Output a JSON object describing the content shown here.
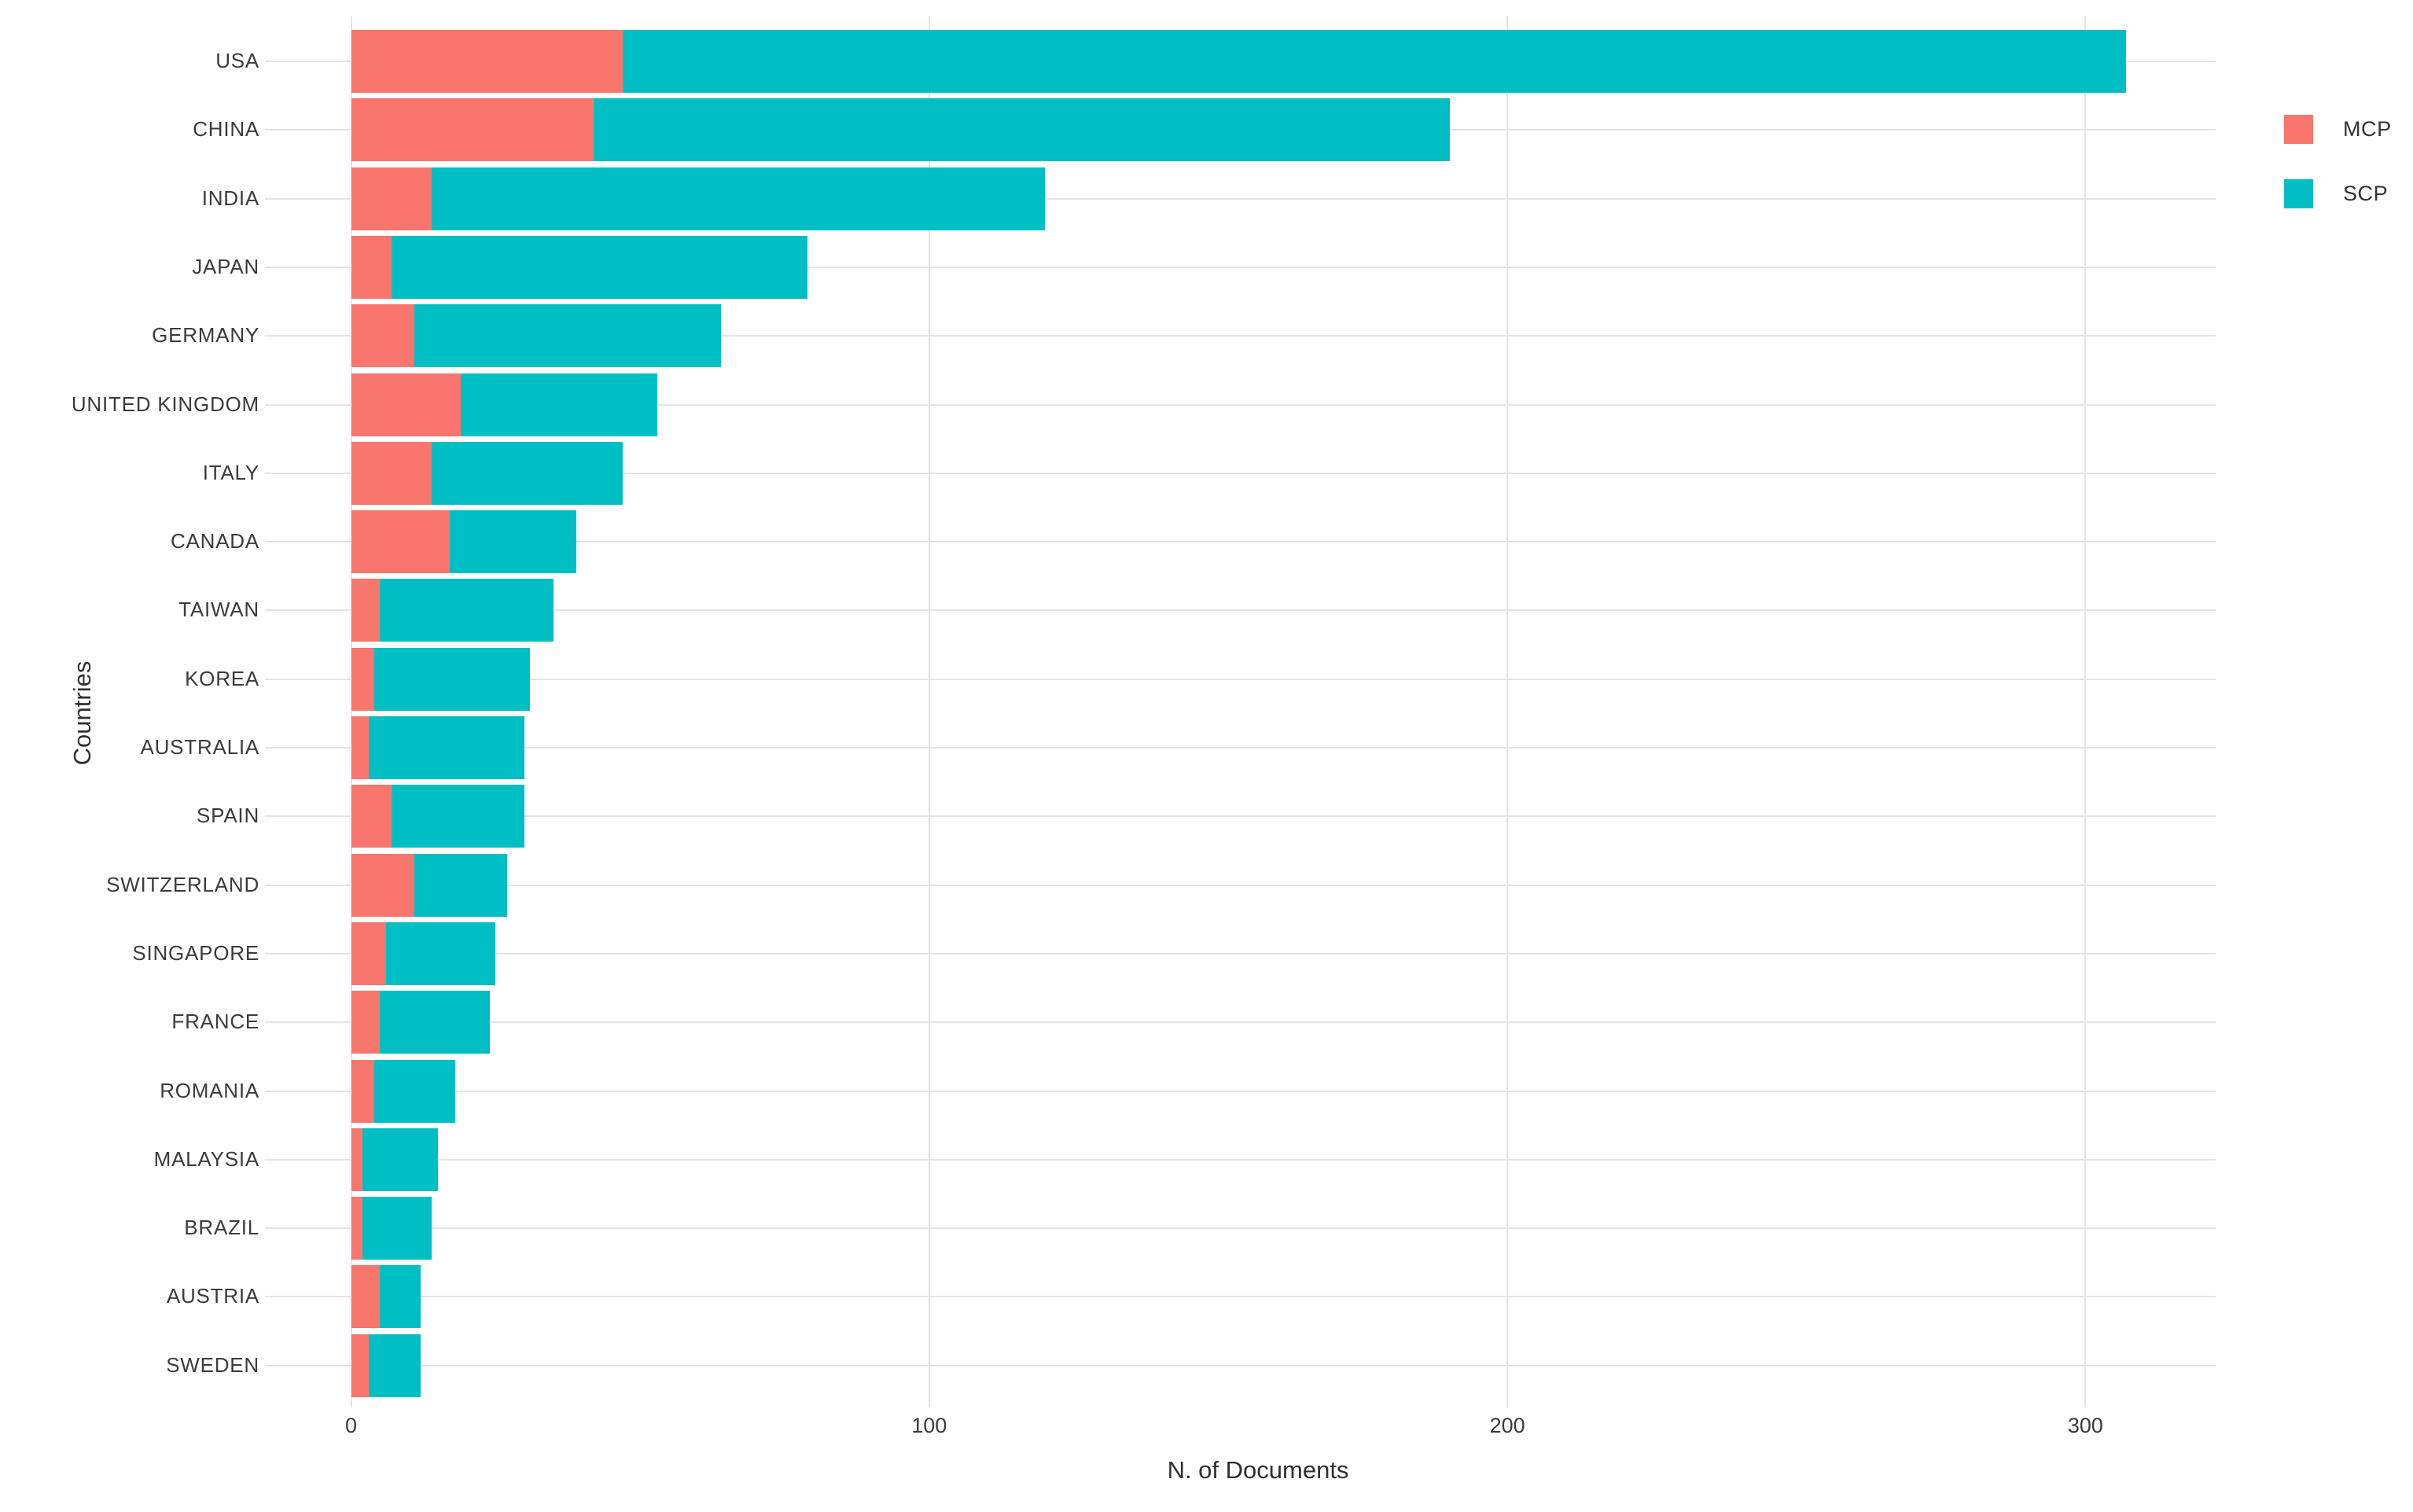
{
  "chart_data": {
    "type": "bar",
    "orientation": "horizontal",
    "stacked": true,
    "title": "",
    "xlabel": "N. of Documents",
    "ylabel": "Countries",
    "categories": [
      "USA",
      "CHINA",
      "INDIA",
      "JAPAN",
      "GERMANY",
      "UNITED KINGDOM",
      "ITALY",
      "CANADA",
      "TAIWAN",
      "KOREA",
      "AUSTRALIA",
      "SPAIN",
      "SWITZERLAND",
      "SINGAPORE",
      "FRANCE",
      "ROMANIA",
      "MALAYSIA",
      "BRAZIL",
      "AUSTRIA",
      "SWEDEN"
    ],
    "series": [
      {
        "name": "MCP",
        "color": "#F8766D",
        "values": [
          47,
          42,
          14,
          7,
          11,
          19,
          14,
          17,
          5,
          4,
          3,
          7,
          11,
          6,
          5,
          4,
          2,
          2,
          5,
          3
        ]
      },
      {
        "name": "SCP",
        "color": "#00BFC4",
        "values": [
          260,
          148,
          106,
          72,
          53,
          34,
          33,
          22,
          30,
          27,
          27,
          23,
          16,
          19,
          19,
          14,
          13,
          12,
          7,
          9
        ]
      }
    ],
    "totals": [
      307,
      190,
      120,
      79,
      64,
      53,
      47,
      39,
      35,
      31,
      30,
      30,
      27,
      25,
      24,
      18,
      15,
      14,
      12,
      12
    ],
    "xlim": [
      0,
      322
    ],
    "xticks": [
      0,
      100,
      200,
      300
    ],
    "xtick_labels": [
      "0",
      "100",
      "200",
      "300"
    ],
    "grid": true,
    "legend_position": "right"
  },
  "axes": {
    "x_title": "N. of Documents",
    "y_title": "Countries"
  },
  "legend": {
    "items": [
      {
        "label": "MCP",
        "color": "#F8766D"
      },
      {
        "label": "SCP",
        "color": "#00BFC4"
      }
    ]
  },
  "colors": {
    "mcp": "#F8766D",
    "scp": "#00BFC4",
    "gridline": "#E4E4E4",
    "tick_text": "#3B3B3B",
    "title_text": "#2F2F2F",
    "background": "#FFFFFF"
  }
}
